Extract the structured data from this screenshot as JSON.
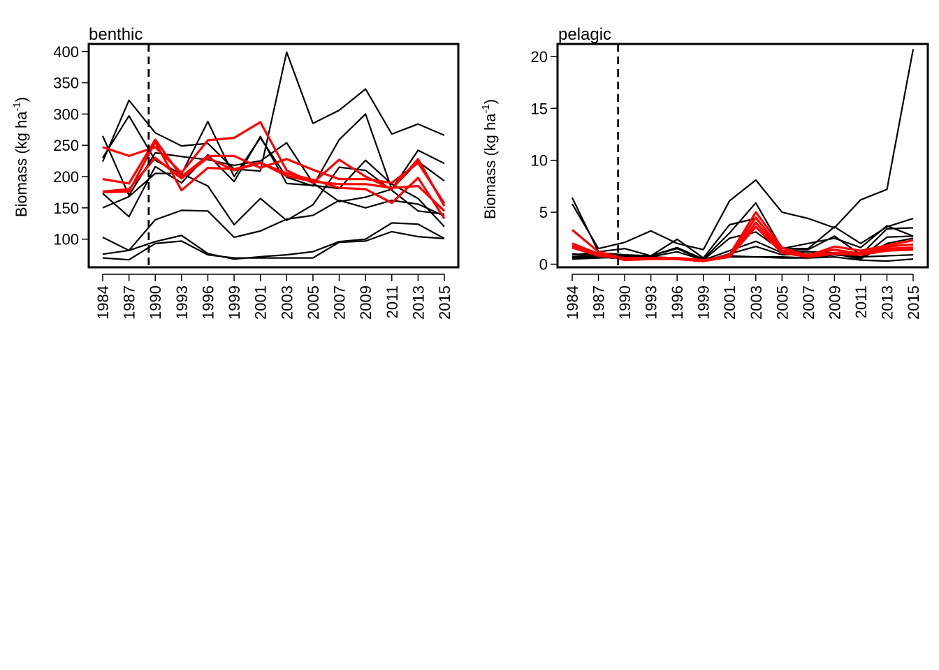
{
  "chart_data": [
    {
      "type": "line",
      "title": "benthic",
      "ylabel": "Biomass (kg ha",
      "ylabel_sup": "-1",
      "ylabel_close": ")",
      "categories": [
        "1984",
        "1987",
        "1990",
        "1993",
        "1996",
        "1999",
        "2001",
        "2003",
        "2005",
        "2007",
        "2009",
        "2011",
        "2013",
        "2015"
      ],
      "yticks": [
        100,
        150,
        200,
        250,
        300,
        350,
        400
      ],
      "ylim": [
        55,
        412
      ],
      "vline_at": 1.75,
      "series": [
        {
          "color": "#000000",
          "values": [
            224,
            322,
            270,
            249,
            253,
            212,
            209,
            399,
            285,
            306,
            340,
            268,
            284,
            266
          ]
        },
        {
          "color": "#000000",
          "values": [
            230,
            297,
            226,
            204,
            288,
            200,
            262,
            199,
            185,
            259,
            300,
            180,
            242,
            221
          ]
        },
        {
          "color": "#000000",
          "values": [
            265,
            170,
            238,
            232,
            227,
            218,
            225,
            254,
            190,
            160,
            167,
            180,
            224,
            193
          ]
        },
        {
          "color": "#000000",
          "values": [
            173,
            136,
            216,
            190,
            235,
            192,
            264,
            189,
            186,
            181,
            226,
            188,
            165,
            120
          ]
        },
        {
          "color": "#000000",
          "values": [
            150,
            168,
            205,
            205,
            185,
            123,
            165,
            130,
            155,
            215,
            210,
            178,
            145,
            140
          ]
        },
        {
          "color": "#000000",
          "values": [
            103,
            82,
            131,
            146,
            145,
            103,
            113,
            132,
            138,
            162,
            150,
            162,
            156,
            137
          ]
        },
        {
          "color": "#000000",
          "values": [
            76,
            82,
            96,
            106,
            77,
            68,
            72,
            75,
            80,
            96,
            100,
            126,
            124,
            101
          ]
        },
        {
          "color": "#000000",
          "values": [
            70,
            67,
            93,
            97,
            75,
            70,
            70,
            70,
            70,
            95,
            97,
            112,
            104,
            101
          ]
        },
        {
          "color": "#ff0000",
          "values": [
            247,
            233,
            247,
            206,
            258,
            262,
            287,
            210,
            190,
            227,
            200,
            180,
            228,
            153
          ]
        },
        {
          "color": "#ff0000",
          "values": [
            196,
            189,
            259,
            200,
            233,
            233,
            214,
            228,
            211,
            196,
            196,
            190,
            222,
            157
          ]
        },
        {
          "color": "#ff0000",
          "values": [
            175,
            176,
            255,
            178,
            214,
            212,
            222,
            205,
            195,
            182,
            180,
            158,
            198,
            133
          ]
        },
        {
          "color": "#ff0000",
          "values": [
            176,
            180,
            230,
            197,
            230,
            210,
            222,
            201,
            192,
            188,
            188,
            182,
            185,
            145
          ]
        }
      ]
    },
    {
      "type": "line",
      "title": "pelagic",
      "ylabel": "Biomass (kg ha",
      "ylabel_sup": "-1",
      "ylabel_close": ")",
      "categories": [
        "1984",
        "1987",
        "1990",
        "1993",
        "1996",
        "1999",
        "2001",
        "2003",
        "2005",
        "2007",
        "2009",
        "2011",
        "2013",
        "2015"
      ],
      "yticks": [
        0,
        5,
        10,
        15,
        20
      ],
      "ylim": [
        -0.3,
        21.2
      ],
      "vline_at": 1.75,
      "series": [
        {
          "color": "#000000",
          "values": [
            5.8,
            1.5,
            2.1,
            3.2,
            2.0,
            1.4,
            6.1,
            8.1,
            5.0,
            4.4,
            3.5,
            6.2,
            7.2,
            20.7
          ]
        },
        {
          "color": "#000000",
          "values": [
            6.4,
            1.2,
            1.5,
            0.8,
            2.4,
            0.6,
            3.8,
            4.4,
            1.5,
            1.5,
            3.6,
            2.0,
            3.6,
            4.4
          ]
        },
        {
          "color": "#000000",
          "values": [
            0.9,
            1.1,
            0.9,
            0.8,
            1.6,
            0.5,
            3.0,
            5.9,
            1.5,
            2.0,
            2.5,
            1.6,
            3.7,
            2.7
          ]
        },
        {
          "color": "#000000",
          "values": [
            0.5,
            0.6,
            0.7,
            0.8,
            1.5,
            0.4,
            2.5,
            3.1,
            1.3,
            1.4,
            2.7,
            0.9,
            3.4,
            3.5
          ]
        },
        {
          "color": "#000000",
          "values": [
            0.6,
            0.8,
            0.8,
            0.7,
            1.2,
            0.4,
            1.3,
            2.2,
            1.1,
            1.2,
            1.1,
            0.6,
            2.6,
            2.7
          ]
        },
        {
          "color": "#000000",
          "values": [
            0.7,
            1.0,
            0.6,
            0.6,
            0.6,
            0.3,
            1.0,
            1.7,
            0.9,
            1.0,
            1.0,
            0.5,
            2.0,
            2.5
          ]
        },
        {
          "color": "#000000",
          "values": [
            0.5,
            0.7,
            0.5,
            0.5,
            0.5,
            0.3,
            0.8,
            0.7,
            0.7,
            0.6,
            0.7,
            0.4,
            0.3,
            0.5
          ]
        },
        {
          "color": "#000000",
          "values": [
            1.0,
            0.8,
            0.6,
            0.7,
            0.6,
            0.4,
            0.7,
            0.7,
            0.6,
            0.6,
            0.9,
            0.7,
            0.8,
            0.9
          ]
        },
        {
          "color": "#ff0000",
          "values": [
            3.3,
            1.2,
            0.5,
            0.6,
            0.5,
            0.3,
            0.9,
            5.0,
            1.6,
            0.8,
            1.7,
            1.3,
            1.8,
            2.3
          ]
        },
        {
          "color": "#ff0000",
          "values": [
            2.0,
            1.0,
            0.4,
            0.5,
            0.5,
            0.3,
            0.8,
            4.5,
            1.3,
            0.9,
            1.4,
            1.0,
            1.7,
            1.9
          ]
        },
        {
          "color": "#ff0000",
          "values": [
            1.8,
            0.9,
            0.5,
            0.6,
            0.6,
            0.4,
            0.7,
            4.0,
            1.2,
            0.8,
            1.1,
            1.1,
            1.5,
            1.6
          ]
        },
        {
          "color": "#ff0000",
          "values": [
            1.6,
            0.8,
            0.6,
            0.6,
            0.5,
            0.3,
            0.7,
            3.6,
            1.1,
            0.7,
            1.0,
            0.9,
            1.3,
            1.4
          ]
        }
      ]
    }
  ]
}
